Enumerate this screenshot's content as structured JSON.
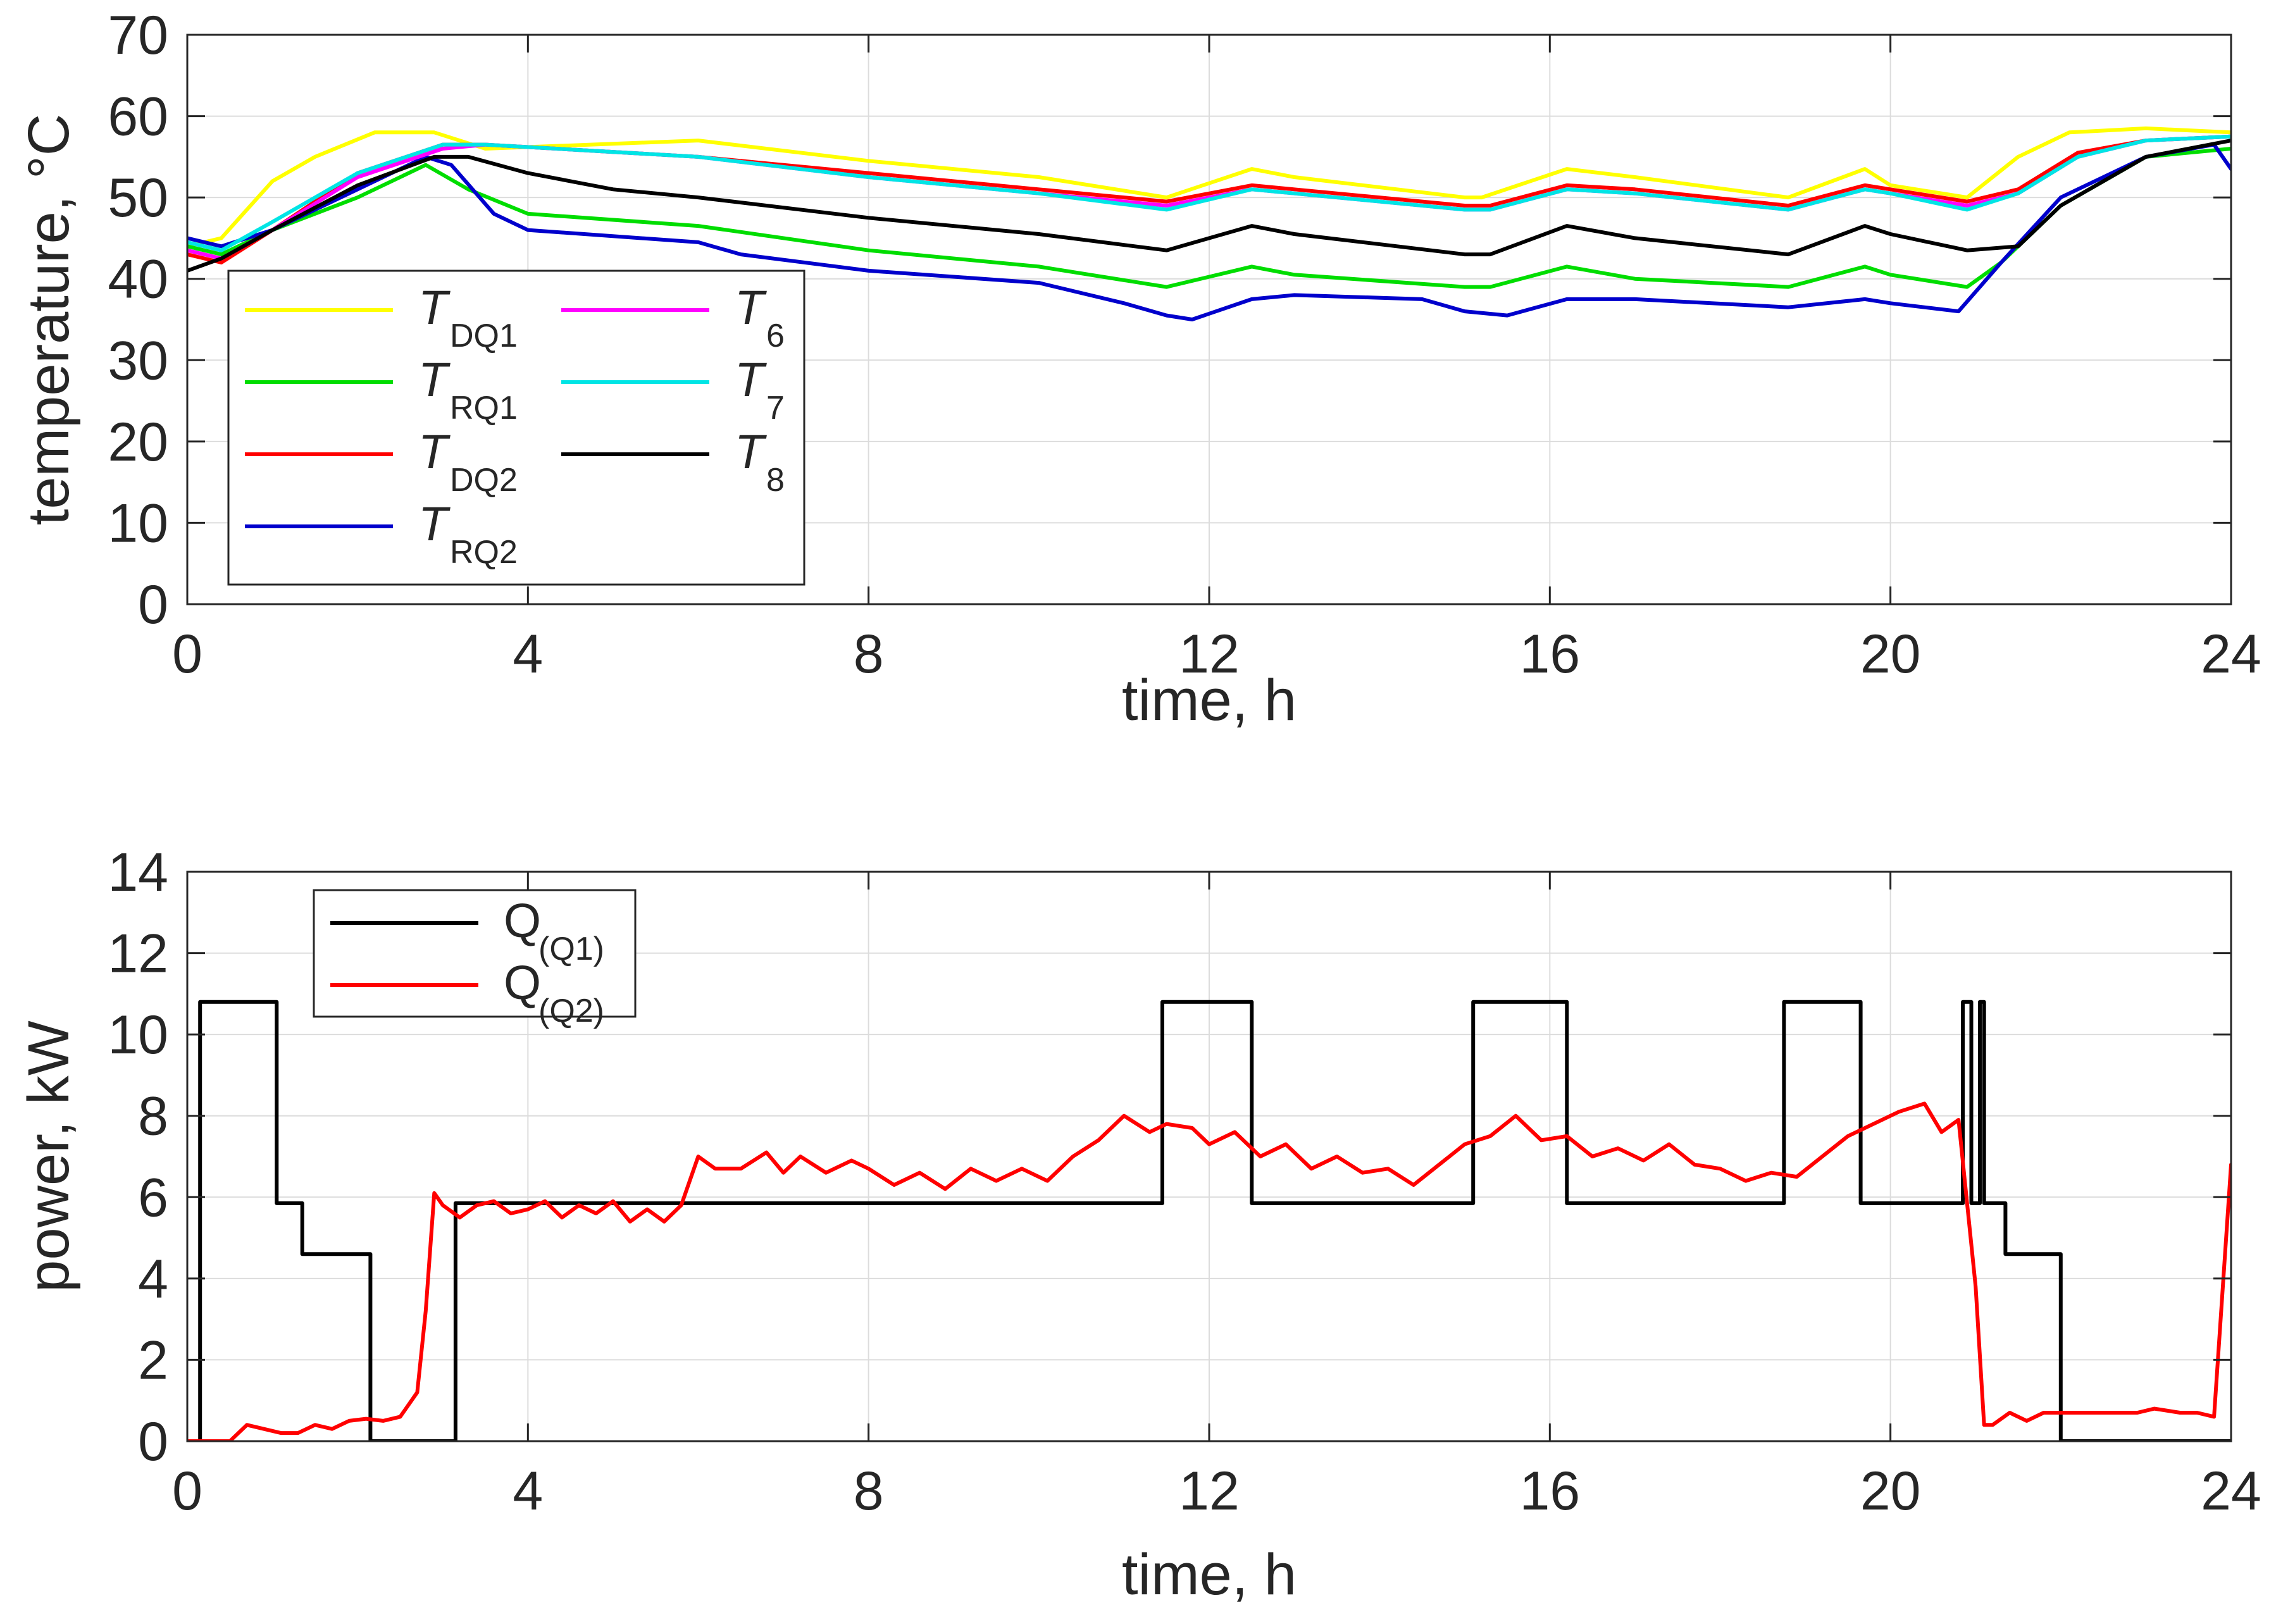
{
  "chart_data": [
    {
      "type": "line",
      "xlabel": "time, h",
      "ylabel": "temperature, °C",
      "xlim": [
        0,
        24
      ],
      "ylim": [
        0,
        70
      ],
      "xticks": [
        "0",
        "4",
        "8",
        "12",
        "16",
        "20",
        "24"
      ],
      "yticks": [
        "0",
        "10",
        "20",
        "30",
        "40",
        "50",
        "60",
        "70"
      ],
      "grid": true,
      "legend_position": "bottom-left",
      "series": [
        {
          "name": "T",
          "sub": "DQ1",
          "color": "#ffff00",
          "x": [
            0,
            0.4,
            1,
            1.5,
            2.2,
            2.9,
            3.5,
            6,
            8,
            10,
            11.5,
            12.5,
            13,
            15,
            15.2,
            16.2,
            17,
            18.8,
            19.7,
            20,
            20.9,
            21.5,
            22.1,
            23,
            24
          ],
          "y": [
            44,
            45,
            52,
            55,
            58,
            58,
            56,
            57,
            54.5,
            52.5,
            50,
            53.5,
            52.5,
            50,
            50,
            53.5,
            52.5,
            50,
            53.5,
            51.5,
            50,
            55,
            58,
            58.5,
            58
          ]
        },
        {
          "name": "T",
          "sub": "RQ1",
          "color": "#00dd00",
          "x": [
            0,
            0.4,
            1,
            2,
            2.8,
            3.3,
            4,
            6,
            8,
            10,
            11.5,
            12.5,
            13,
            15,
            15.3,
            16.2,
            17,
            18.8,
            19.7,
            20,
            20.9,
            21.3,
            22,
            23,
            24
          ],
          "y": [
            44,
            43,
            46,
            50,
            54,
            51,
            48,
            46.5,
            43.5,
            41.5,
            39,
            41.5,
            40.5,
            39,
            39,
            41.5,
            40,
            39,
            41.5,
            40.5,
            39,
            42,
            49,
            55,
            56
          ]
        },
        {
          "name": "T",
          "sub": "DQ2",
          "color": "#ff0000",
          "x": [
            0,
            0.4,
            1,
            2,
            3,
            3.5,
            6,
            8,
            10,
            11.5,
            12.5,
            13,
            15,
            15.3,
            16.2,
            17,
            18.8,
            19.7,
            20,
            20.9,
            21.5,
            22.2,
            23,
            24
          ],
          "y": [
            43,
            42,
            46,
            53,
            56.5,
            56.5,
            55,
            53,
            51,
            49.5,
            51.5,
            51,
            49,
            49,
            51.5,
            51,
            49,
            51.5,
            51,
            49.5,
            51,
            55.5,
            57,
            57.5
          ]
        },
        {
          "name": "T",
          "sub": "RQ2",
          "color": "#0000cc",
          "x": [
            0,
            0.4,
            1,
            2,
            2.8,
            3.1,
            3.6,
            4,
            6,
            6.5,
            8,
            10,
            11,
            11.5,
            11.8,
            12.5,
            13,
            14.5,
            15,
            15.5,
            16.2,
            17,
            18.8,
            19.7,
            20,
            20.8,
            21.3,
            22,
            23,
            23.8,
            24
          ],
          "y": [
            45,
            44,
            46,
            51,
            55,
            54,
            48,
            46,
            44.5,
            43,
            41,
            39.5,
            37,
            35.5,
            35,
            37.5,
            38,
            37.5,
            36,
            35.5,
            37.5,
            37.5,
            36.5,
            37.5,
            37,
            36,
            42,
            50,
            55,
            56.5,
            53.5
          ]
        },
        {
          "name": "T",
          "sub": "6",
          "color": "#ff00ff",
          "x": [
            0,
            0.4,
            1,
            2,
            3,
            3.5,
            6,
            8,
            10,
            11.5,
            12.5,
            13,
            15,
            15.3,
            16.2,
            17,
            18.8,
            19.7,
            20,
            20.9,
            21.5,
            22.2,
            23,
            24
          ],
          "y": [
            43.5,
            42.5,
            46,
            52.5,
            56,
            56.5,
            55,
            52.5,
            50.5,
            49,
            51,
            50.5,
            48.5,
            48.5,
            51,
            50.5,
            48.5,
            51,
            50.5,
            49,
            50.5,
            55,
            57,
            57.5
          ]
        },
        {
          "name": "T",
          "sub": "7",
          "color": "#00e5e5",
          "x": [
            0,
            0.4,
            1,
            2,
            3,
            3.5,
            6,
            8,
            10,
            11.5,
            12.5,
            13,
            15,
            15.3,
            16.2,
            17,
            18.8,
            19.7,
            20,
            20.9,
            21.5,
            22.2,
            23,
            24
          ],
          "y": [
            44.5,
            43.5,
            47,
            53,
            56.5,
            56.5,
            55,
            52.5,
            50.5,
            48.5,
            51,
            50.5,
            48.5,
            48.5,
            51,
            50.5,
            48.5,
            51,
            50.5,
            48.5,
            50.5,
            55,
            57,
            57.5
          ]
        },
        {
          "name": "T",
          "sub": "8",
          "color": "#000000",
          "x": [
            0,
            0.4,
            1,
            2,
            2.9,
            3.3,
            4,
            5,
            6,
            8,
            10,
            11.5,
            12.5,
            13,
            15,
            15.3,
            16.2,
            17,
            18.8,
            19.7,
            20,
            20.9,
            21.5,
            22,
            23,
            24
          ],
          "y": [
            41,
            42.5,
            46,
            51.5,
            55,
            55,
            53,
            51,
            50,
            47.5,
            45.5,
            43.5,
            46.5,
            45.5,
            43,
            43,
            46.5,
            45,
            43,
            46.5,
            45.5,
            43.5,
            44,
            49,
            55,
            57
          ]
        }
      ]
    },
    {
      "type": "line",
      "xlabel": "time, h",
      "ylabel": "power, kW",
      "xlim": [
        0,
        24
      ],
      "ylim": [
        0,
        14
      ],
      "xticks": [
        "0",
        "4",
        "8",
        "12",
        "16",
        "20",
        "24"
      ],
      "yticks": [
        "0",
        "2",
        "4",
        "6",
        "8",
        "10",
        "12",
        "14"
      ],
      "grid": true,
      "legend_position": "top-left",
      "series": [
        {
          "name": "Q",
          "sub": "(Q1)",
          "color": "#000000",
          "x": [
            0,
            0.15,
            0.15,
            1.05,
            1.05,
            1.35,
            1.35,
            2.15,
            2.15,
            3.15,
            3.15,
            11.45,
            11.45,
            12.5,
            12.5,
            15.1,
            15.1,
            16.2,
            16.2,
            18.75,
            18.75,
            19.65,
            19.65,
            20.85,
            20.85,
            20.95,
            20.95,
            21.05,
            21.05,
            21.1,
            21.1,
            21.2,
            21.2,
            21.35,
            21.35,
            22.0,
            22.0,
            24
          ],
          "y": [
            0,
            0,
            10.8,
            10.8,
            5.85,
            5.85,
            4.6,
            4.6,
            0,
            0,
            5.85,
            5.85,
            10.8,
            10.8,
            5.85,
            5.85,
            10.8,
            10.8,
            5.85,
            5.85,
            10.8,
            10.8,
            5.85,
            5.85,
            10.8,
            10.8,
            5.85,
            5.85,
            10.8,
            10.8,
            5.85,
            5.85,
            5.85,
            5.85,
            4.6,
            4.6,
            0,
            0
          ]
        },
        {
          "name": "Q",
          "sub": "(Q2)",
          "color": "#ff0000",
          "x": [
            0,
            0.5,
            0.7,
            0.9,
            1.1,
            1.3,
            1.5,
            1.7,
            1.9,
            2.1,
            2.3,
            2.5,
            2.7,
            2.8,
            2.9,
            3.0,
            3.2,
            3.4,
            3.6,
            3.8,
            4.0,
            4.2,
            4.4,
            4.6,
            4.8,
            5.0,
            5.2,
            5.4,
            5.6,
            5.8,
            6.0,
            6.2,
            6.5,
            6.8,
            7.0,
            7.2,
            7.5,
            7.8,
            8.0,
            8.3,
            8.6,
            8.9,
            9.2,
            9.5,
            9.8,
            10.1,
            10.4,
            10.7,
            11.0,
            11.3,
            11.5,
            11.8,
            12.0,
            12.3,
            12.6,
            12.9,
            13.2,
            13.5,
            13.8,
            14.1,
            14.4,
            14.7,
            15.0,
            15.3,
            15.6,
            15.9,
            16.2,
            16.5,
            16.8,
            17.1,
            17.4,
            17.7,
            18.0,
            18.3,
            18.6,
            18.9,
            19.2,
            19.5,
            19.8,
            20.1,
            20.4,
            20.6,
            20.8,
            21.0,
            21.1,
            21.2,
            21.4,
            21.6,
            21.8,
            22.0,
            22.3,
            22.6,
            22.9,
            23.1,
            23.4,
            23.6,
            23.8,
            24
          ],
          "y": [
            0,
            0,
            0.4,
            0.3,
            0.2,
            0.2,
            0.4,
            0.3,
            0.5,
            0.55,
            0.5,
            0.6,
            1.2,
            3.2,
            6.1,
            5.8,
            5.5,
            5.8,
            5.9,
            5.6,
            5.7,
            5.9,
            5.5,
            5.8,
            5.6,
            5.9,
            5.4,
            5.7,
            5.4,
            5.8,
            7.0,
            6.7,
            6.7,
            7.1,
            6.6,
            7.0,
            6.6,
            6.9,
            6.7,
            6.3,
            6.6,
            6.2,
            6.7,
            6.4,
            6.7,
            6.4,
            7.0,
            7.4,
            8.0,
            7.6,
            7.8,
            7.7,
            7.3,
            7.6,
            7.0,
            7.3,
            6.7,
            7.0,
            6.6,
            6.7,
            6.3,
            6.8,
            7.3,
            7.5,
            8.0,
            7.4,
            7.5,
            7.0,
            7.2,
            6.9,
            7.3,
            6.8,
            6.7,
            6.4,
            6.6,
            6.5,
            7.0,
            7.5,
            7.8,
            8.1,
            8.3,
            7.6,
            7.9,
            3.8,
            0.4,
            0.4,
            0.7,
            0.5,
            0.7,
            0.7,
            0.7,
            0.7,
            0.7,
            0.8,
            0.7,
            0.7,
            0.6,
            6.8
          ]
        }
      ]
    }
  ]
}
